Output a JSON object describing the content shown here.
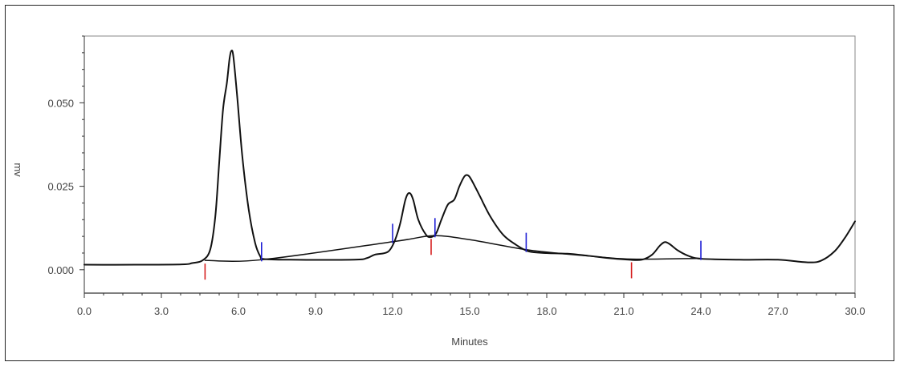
{
  "chart_data": {
    "type": "line",
    "title": "",
    "xlabel": "Minutes",
    "ylabel": "mv",
    "xlim": [
      0,
      30
    ],
    "ylim": [
      -0.007,
      0.07
    ],
    "grid": false,
    "legend": "none",
    "x_tick_labels": [
      "0.0",
      "3.0",
      "6.0",
      "9.0",
      "12.0",
      "15.0",
      "18.0",
      "21.0",
      "24.0",
      "27.0",
      "30.0"
    ],
    "x_ticks": [
      0,
      3,
      6,
      9,
      12,
      15,
      18,
      21,
      24,
      27,
      30
    ],
    "y_tick_labels": [
      "0.000",
      "0.025",
      "0.050"
    ],
    "y_ticks": [
      0,
      0.025,
      0.05
    ],
    "series": [
      {
        "values": [
          [
            0.0,
            0.0015
          ],
          [
            2.0,
            0.0015
          ],
          [
            3.8,
            0.0016
          ],
          [
            4.2,
            0.002
          ],
          [
            4.6,
            0.0028
          ],
          [
            4.9,
            0.006
          ],
          [
            5.1,
            0.016
          ],
          [
            5.25,
            0.032
          ],
          [
            5.4,
            0.048
          ],
          [
            5.55,
            0.056
          ],
          [
            5.65,
            0.063
          ],
          [
            5.72,
            0.0655
          ],
          [
            5.8,
            0.064
          ],
          [
            5.95,
            0.052
          ],
          [
            6.15,
            0.034
          ],
          [
            6.4,
            0.018
          ],
          [
            6.65,
            0.008
          ],
          [
            6.85,
            0.004
          ],
          [
            7.0,
            0.0032
          ],
          [
            8.0,
            0.003
          ],
          [
            10.5,
            0.003
          ],
          [
            11.0,
            0.0035
          ],
          [
            11.3,
            0.0045
          ],
          [
            11.7,
            0.005
          ],
          [
            11.9,
            0.006
          ],
          [
            12.1,
            0.009
          ],
          [
            12.3,
            0.014
          ],
          [
            12.5,
            0.021
          ],
          [
            12.65,
            0.023
          ],
          [
            12.8,
            0.021
          ],
          [
            13.0,
            0.015
          ],
          [
            13.3,
            0.0105
          ],
          [
            13.5,
            0.0098
          ],
          [
            13.7,
            0.011
          ],
          [
            13.9,
            0.015
          ],
          [
            14.15,
            0.0195
          ],
          [
            14.4,
            0.021
          ],
          [
            14.6,
            0.025
          ],
          [
            14.8,
            0.028
          ],
          [
            14.95,
            0.0282
          ],
          [
            15.1,
            0.0265
          ],
          [
            15.4,
            0.022
          ],
          [
            15.8,
            0.016
          ],
          [
            16.3,
            0.0105
          ],
          [
            16.8,
            0.0075
          ],
          [
            17.3,
            0.0055
          ],
          [
            18.0,
            0.005
          ],
          [
            18.8,
            0.0048
          ],
          [
            19.6,
            0.0042
          ],
          [
            20.4,
            0.0035
          ],
          [
            21.2,
            0.003
          ],
          [
            21.7,
            0.003
          ],
          [
            22.1,
            0.0045
          ],
          [
            22.4,
            0.0072
          ],
          [
            22.6,
            0.0083
          ],
          [
            22.8,
            0.0076
          ],
          [
            23.1,
            0.0058
          ],
          [
            23.5,
            0.0042
          ],
          [
            24.0,
            0.0033
          ],
          [
            25.5,
            0.003
          ],
          [
            27.0,
            0.003
          ],
          [
            28.2,
            0.0022
          ],
          [
            28.7,
            0.0028
          ],
          [
            29.2,
            0.0055
          ],
          [
            29.6,
            0.0095
          ],
          [
            30.0,
            0.0145
          ]
        ]
      },
      {
        "values": [
          [
            4.7,
            0.0028
          ],
          [
            6.9,
            0.003
          ],
          [
            12.1,
            0.0085
          ],
          [
            13.6,
            0.0102
          ],
          [
            15.0,
            0.009
          ],
          [
            16.3,
            0.0072
          ],
          [
            17.4,
            0.0058
          ],
          [
            19.5,
            0.0042
          ],
          [
            21.3,
            0.0032
          ],
          [
            24.0,
            0.0034
          ]
        ]
      }
    ],
    "integration_markers": [
      {
        "x": 4.7,
        "color": "#d62020",
        "baseline": 0.0028,
        "dir": "down"
      },
      {
        "x": 6.9,
        "color": "#2020d6",
        "baseline": 0.003,
        "dir": "up"
      },
      {
        "x": 12.0,
        "color": "#2020d6",
        "baseline": 0.0085,
        "dir": "up"
      },
      {
        "x": 13.5,
        "color": "#d62020",
        "baseline": 0.0102,
        "dir": "down"
      },
      {
        "x": 13.65,
        "color": "#2020d6",
        "baseline": 0.0102,
        "dir": "up"
      },
      {
        "x": 17.2,
        "color": "#2020d6",
        "baseline": 0.0058,
        "dir": "up"
      },
      {
        "x": 21.3,
        "color": "#d62020",
        "baseline": 0.0032,
        "dir": "down"
      },
      {
        "x": 24.0,
        "color": "#2020d6",
        "baseline": 0.0034,
        "dir": "up"
      }
    ],
    "colors": {
      "trace": "#111111",
      "axis": "#333333",
      "peak_start": "#d62020",
      "peak_end": "#2020d6"
    }
  }
}
